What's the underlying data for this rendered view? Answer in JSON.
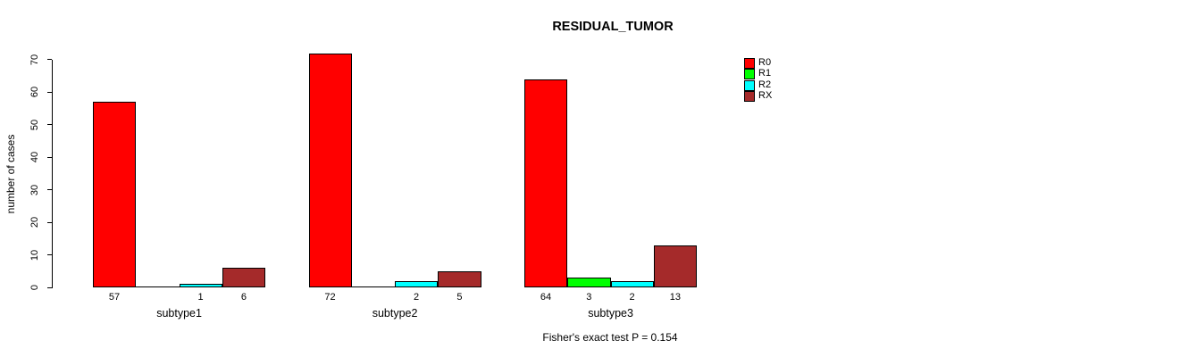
{
  "chart_data": {
    "type": "bar",
    "title": "RESIDUAL_TUMOR",
    "xlabel": "",
    "ylabel": "number of cases",
    "ylim": [
      0,
      70
    ],
    "yticks": [
      0,
      10,
      20,
      30,
      40,
      50,
      60,
      70
    ],
    "grid": false,
    "legend_position": "right",
    "categories": [
      "subtype1",
      "subtype2",
      "subtype3"
    ],
    "series": [
      {
        "name": "R0",
        "color": "#FF0000",
        "values": [
          57,
          72,
          64
        ]
      },
      {
        "name": "R1",
        "color": "#00FF00",
        "values": [
          0,
          0,
          3
        ]
      },
      {
        "name": "R2",
        "color": "#00FFFF",
        "values": [
          1,
          2,
          2
        ]
      },
      {
        "name": "RX",
        "color": "#A52A2A",
        "values": [
          6,
          5,
          13
        ]
      }
    ],
    "bar_value_labels": [
      [
        "57",
        "",
        "1",
        "6"
      ],
      [
        "72",
        "",
        "2",
        "5"
      ],
      [
        "64",
        "3",
        "2",
        "13"
      ]
    ],
    "annotation": "Fisher's exact test P = 0.154"
  }
}
